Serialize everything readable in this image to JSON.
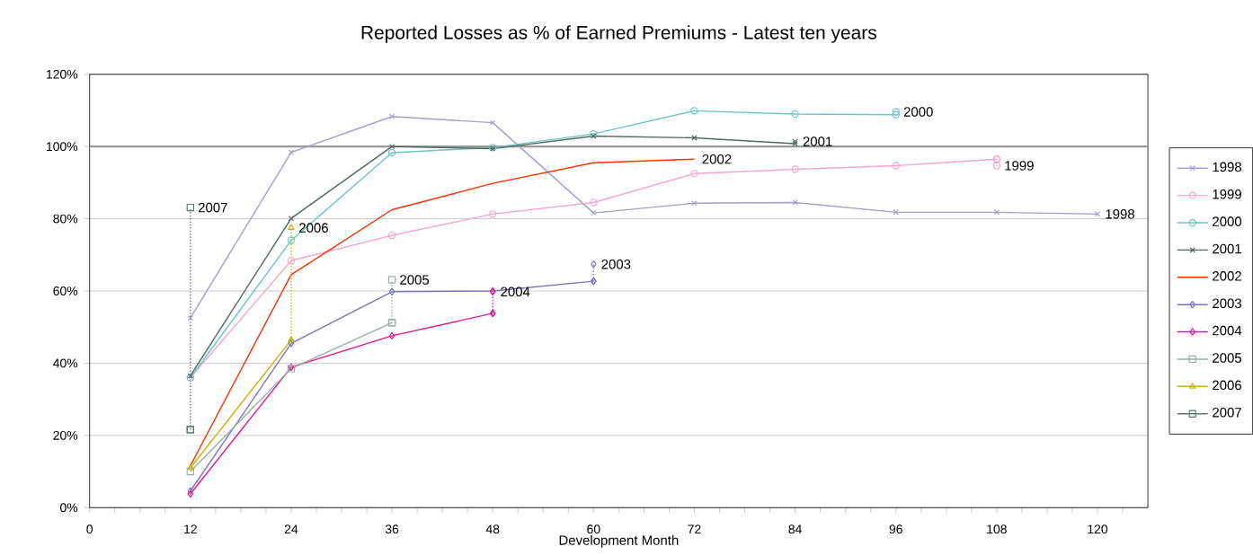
{
  "chart_data": {
    "type": "line",
    "title": "Reported Losses as % of Earned Premiums   -   Latest ten years",
    "xlabel": "Development Month",
    "xlim": [
      0,
      126
    ],
    "xticks": [
      0,
      {
        "value": 3,
        "label": null
      },
      {
        "value": 6,
        "label": null
      },
      {
        "value": 9,
        "label": null
      },
      12,
      {
        "value": 15,
        "label": null
      },
      {
        "value": 18,
        "label": null
      },
      {
        "value": 21,
        "label": null
      },
      24,
      {
        "value": 27,
        "label": null
      },
      {
        "value": 30,
        "label": null
      },
      {
        "value": 33,
        "label": null
      },
      36,
      {
        "value": 39,
        "label": null
      },
      {
        "value": 42,
        "label": null
      },
      {
        "value": 45,
        "label": null
      },
      48,
      {
        "value": 51,
        "label": null
      },
      {
        "value": 54,
        "label": null
      },
      {
        "value": 57,
        "label": null
      },
      60,
      {
        "value": 63,
        "label": null
      },
      {
        "value": 66,
        "label": null
      },
      {
        "value": 69,
        "label": null
      },
      72,
      {
        "value": 75,
        "label": null
      },
      {
        "value": 78,
        "label": null
      },
      {
        "value": 81,
        "label": null
      },
      84,
      {
        "value": 87,
        "label": null
      },
      {
        "value": 90,
        "label": null
      },
      {
        "value": 93,
        "label": null
      },
      96,
      {
        "value": 99,
        "label": null
      },
      {
        "value": 102,
        "label": null
      },
      {
        "value": 105,
        "label": null
      },
      108,
      {
        "value": 111,
        "label": null
      },
      {
        "value": 114,
        "label": null
      },
      {
        "value": 117,
        "label": null
      },
      120,
      {
        "value": 123,
        "label": null
      }
    ],
    "ylim": [
      0,
      120
    ],
    "yticks": [
      {
        "value": 0,
        "label": "0%"
      },
      {
        "value": 20,
        "label": "20%"
      },
      {
        "value": 40,
        "label": "40%"
      },
      {
        "value": 60,
        "label": "60%"
      },
      {
        "value": 80,
        "label": "80%"
      },
      {
        "value": 100,
        "label": "100%"
      },
      {
        "value": 120,
        "label": "120%"
      }
    ],
    "grid": "y",
    "legend": "right",
    "line_style": "solid",
    "ref_lines": [
      {
        "axis": "y",
        "value": 100,
        "color": "#999999"
      }
    ],
    "series": [
      {
        "name": "1998",
        "color": "#a49fd0",
        "marker": "cross",
        "x": [
          12,
          24,
          36,
          48,
          60,
          72,
          84,
          96,
          108,
          120
        ],
        "values": [
          52.5,
          98.4,
          108.3,
          106.6,
          81.6,
          84.3,
          84.5,
          81.8,
          81.8,
          81.3
        ]
      },
      {
        "name": "1999",
        "color": "#f4a6d0",
        "marker": "circle",
        "x": [
          12,
          24,
          36,
          48,
          60,
          72,
          84,
          96,
          108
        ],
        "values": [
          36,
          68.4,
          75.4,
          81.3,
          84.5,
          92.5,
          93.7,
          94.7,
          96.5
        ]
      },
      {
        "name": "2000",
        "color": "#6cc5c6",
        "marker": "circle",
        "x": [
          12,
          24,
          36,
          48,
          60,
          72,
          84,
          96
        ],
        "values": [
          36,
          74.0,
          98.3,
          99.7,
          103.5,
          109.9,
          109.0,
          108.8
        ]
      },
      {
        "name": "2001",
        "color": "#4f6b5f",
        "marker": "cross",
        "x": [
          12,
          24,
          36,
          48,
          60,
          72,
          84
        ],
        "values": [
          36.5,
          80.1,
          100.0,
          99.4,
          102.9,
          102.4,
          100.8
        ]
      },
      {
        "name": "2002",
        "color": "#ff3300",
        "marker": "none",
        "x": [
          12,
          24,
          36,
          48,
          60,
          72
        ],
        "values": [
          11.6,
          64.5,
          82.5,
          89.8,
          95.5,
          96.5
        ]
      },
      {
        "name": "2003",
        "color": "#7b74c0",
        "marker": "diamond",
        "x": [
          12,
          24,
          36,
          48,
          60
        ],
        "values": [
          4.6,
          45.5,
          59.8,
          60.0,
          62.7
        ]
      },
      {
        "name": "2004",
        "color": "#e6158c",
        "marker": "diamond",
        "x": [
          12,
          24,
          36,
          48
        ],
        "values": [
          3.8,
          38.9,
          47.6,
          53.8
        ]
      },
      {
        "name": "2005",
        "color": "#9aaea6",
        "marker": "square",
        "x": [
          12,
          24,
          36
        ],
        "values": [
          10.0,
          38.5,
          51.2
        ]
      },
      {
        "name": "2006",
        "color": "#c8b400",
        "marker": "triangle",
        "x": [
          12,
          24
        ],
        "values": [
          11.0,
          46.4
        ]
      },
      {
        "name": "2007",
        "color": "#5a7a6e",
        "marker": "square",
        "x": [
          12
        ],
        "values": [
          21.6
        ]
      },
      {
        "color": "#f4a6d0",
        "marker": "circle",
        "line_style": "dotted",
        "x": [
          108,
          108
        ],
        "values": [
          96.5,
          94.7
        ]
      },
      {
        "type": "scatter",
        "color": "#6cc5c6",
        "marker": "circle",
        "x": [
          96
        ],
        "values": [
          109.6
        ]
      },
      {
        "type": "scatter",
        "color": "#4f6b5f",
        "marker": "cross",
        "x": [
          84
        ],
        "values": [
          101.4
        ]
      },
      {
        "color": "#7b74c0",
        "marker": "diamond",
        "line_style": "dotted",
        "x": [
          60,
          60
        ],
        "values": [
          62.7,
          67.4
        ]
      },
      {
        "color": "#e6158c",
        "marker": "diamond",
        "line_style": "dotted",
        "x": [
          48,
          48
        ],
        "values": [
          53.8,
          59.8
        ]
      },
      {
        "color": "#9aaea6",
        "marker": "square",
        "line_style": "dotted",
        "x": [
          36,
          36
        ],
        "values": [
          51.2,
          63.1
        ]
      },
      {
        "color": "#c8b400",
        "marker": "triangle",
        "line_style": "dotted",
        "x": [
          24,
          24
        ],
        "values": [
          46.4,
          77.5
        ]
      },
      {
        "color": "#5a7a6e",
        "marker": "square",
        "line_style": "dotted",
        "x": [
          12,
          12
        ],
        "values": [
          21.6,
          83.1
        ]
      }
    ],
    "annotations": [
      {
        "text": "2007",
        "x": 12,
        "y": 83.1
      },
      {
        "text": "2006",
        "x": 24,
        "y": 77.5
      },
      {
        "text": "2005",
        "x": 36,
        "y": 63.1
      },
      {
        "text": "2004",
        "x": 48,
        "y": 59.8
      },
      {
        "text": "2003",
        "x": 60,
        "y": 67.4
      },
      {
        "text": "2002",
        "x": 72,
        "y": 96.5
      },
      {
        "text": "2001",
        "x": 84,
        "y": 101.4
      },
      {
        "text": "2000",
        "x": 96,
        "y": 109.6
      },
      {
        "text": "1999",
        "x": 108,
        "y": 94.7
      },
      {
        "text": "1998",
        "x": 120,
        "y": 81.3
      }
    ]
  }
}
